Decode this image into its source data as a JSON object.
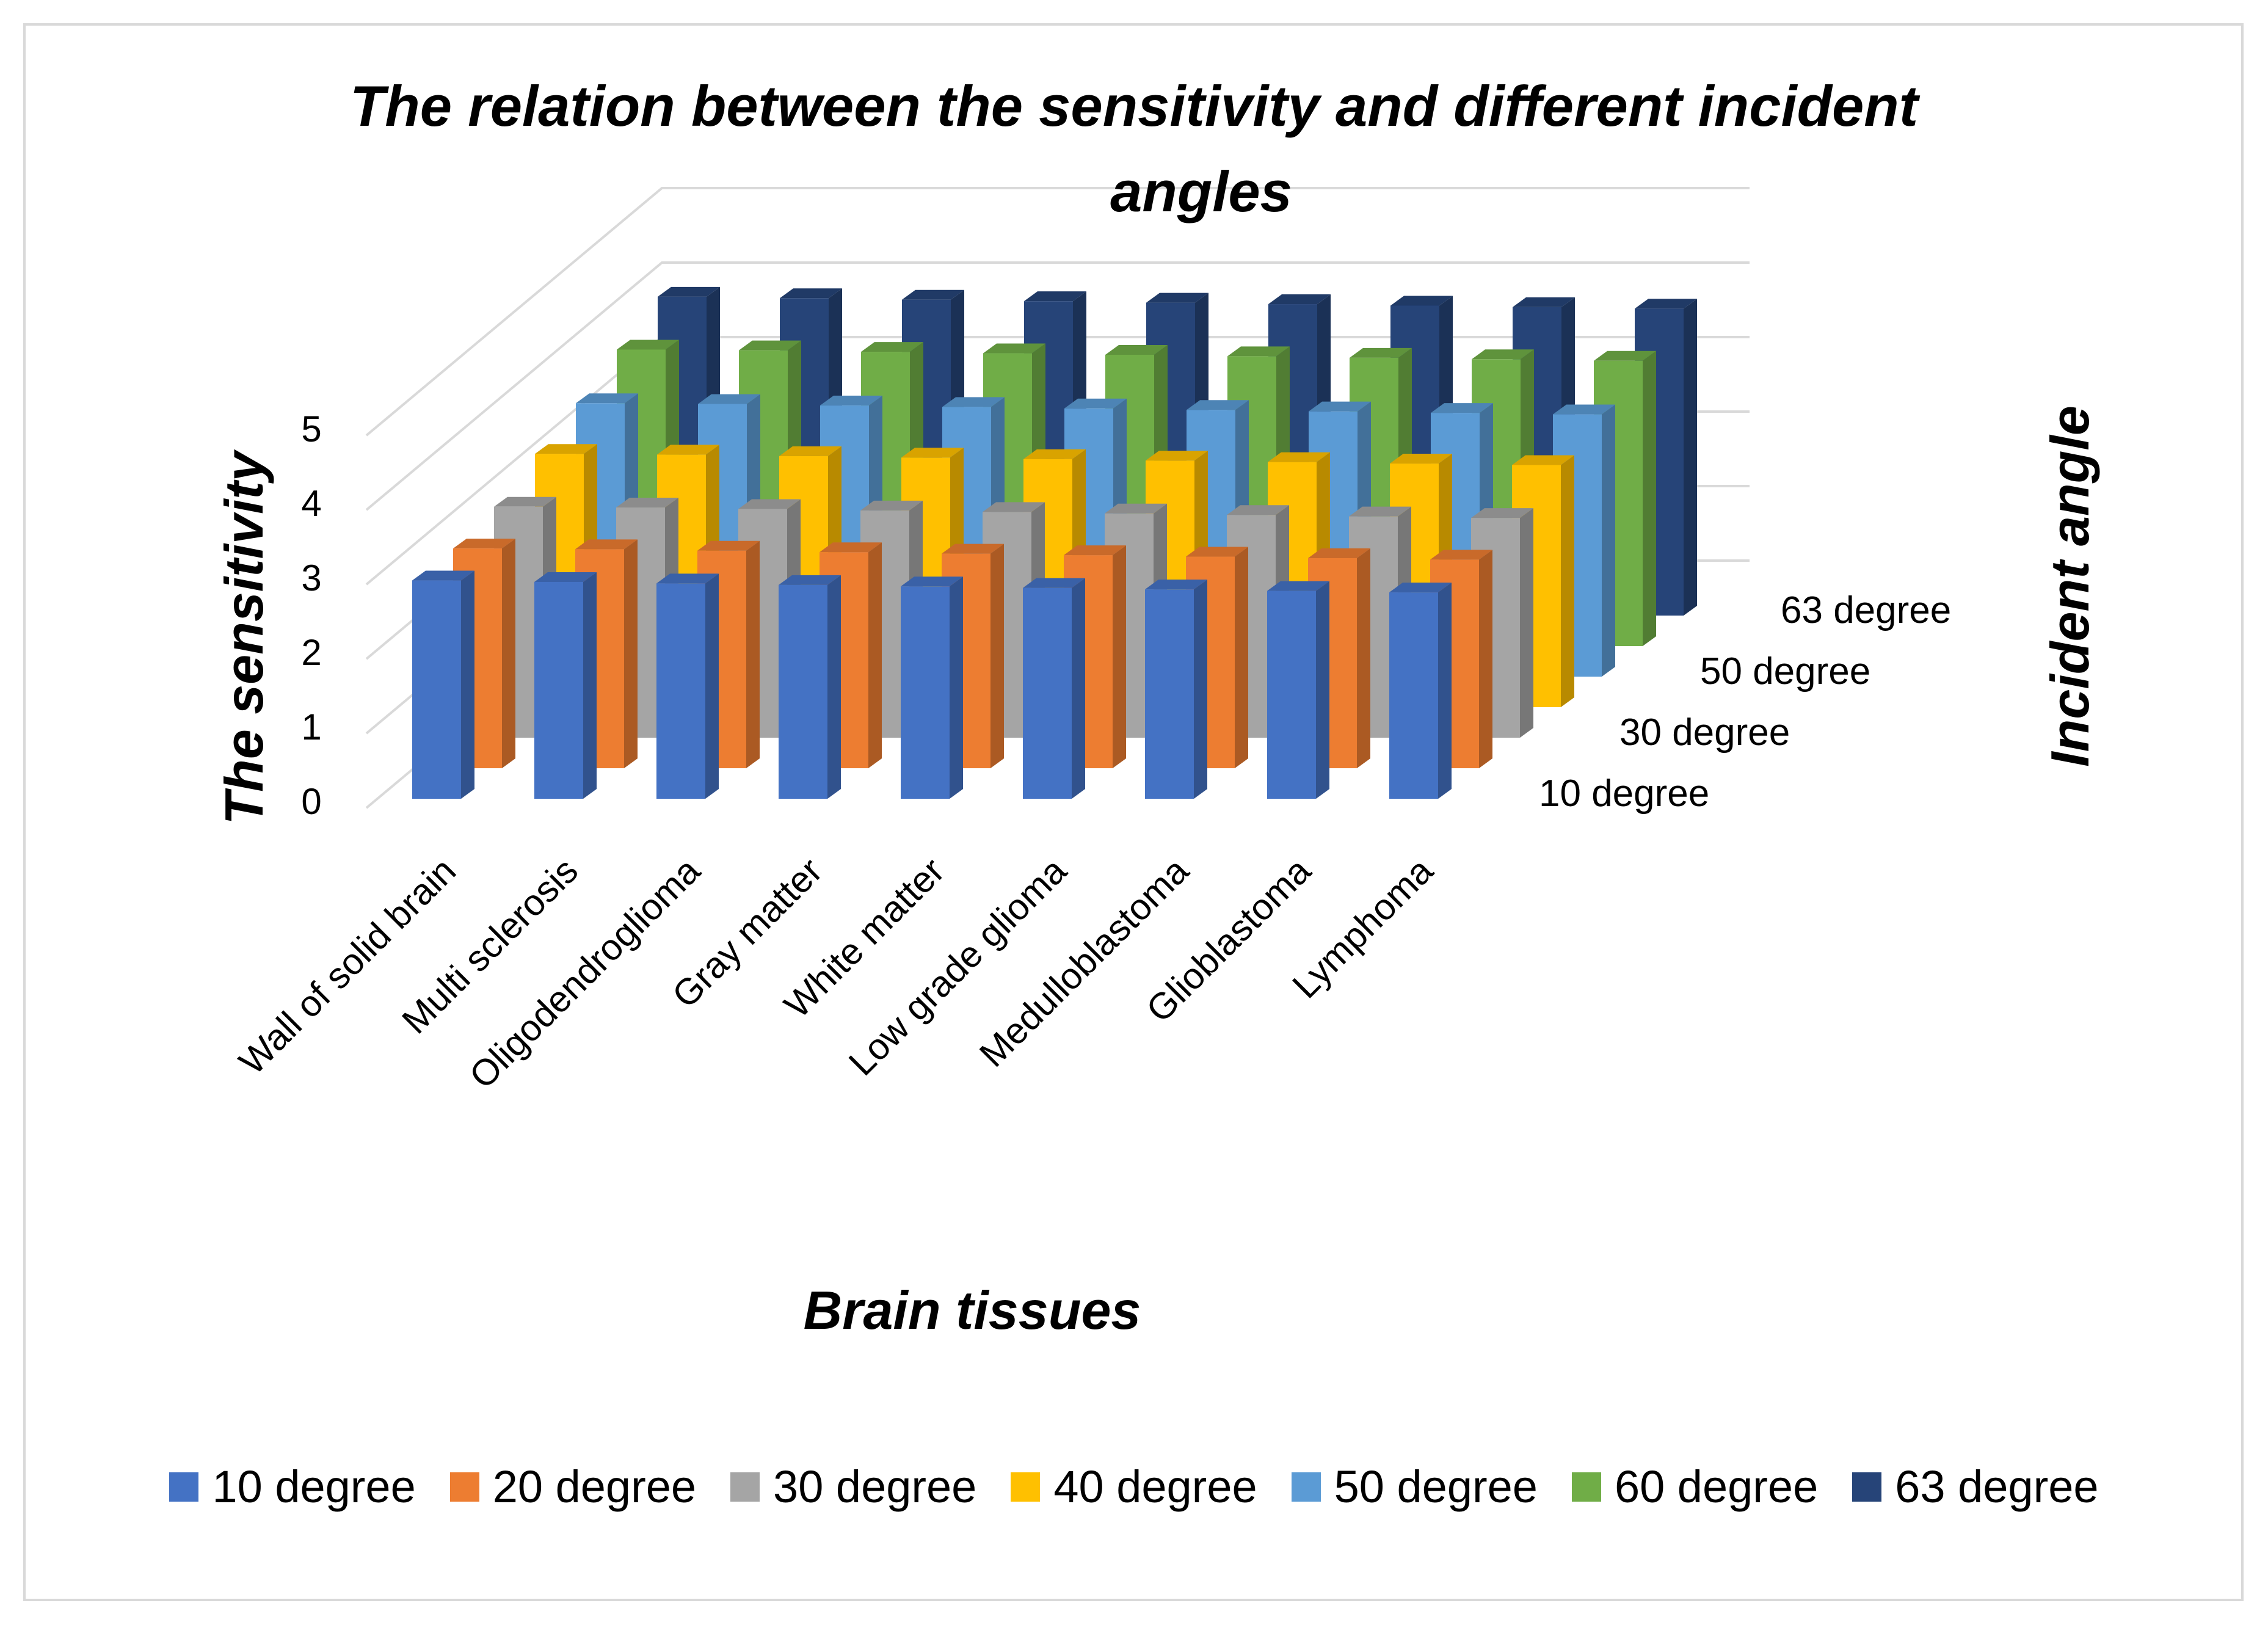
{
  "chart_data": {
    "type": "bar",
    "variant": "3d-bar",
    "title_lines": [
      "The relation between the sensitivity and different incident",
      "angles"
    ],
    "xlabel": "Brain tissues",
    "ylabel": "The sensitivity",
    "zlabel": "Incident angle",
    "ylim": [
      0,
      5
    ],
    "yticks": [
      "0",
      "1",
      "2",
      "3",
      "4",
      "5"
    ],
    "grid": true,
    "legend_position": "bottom",
    "categories": [
      "Wall of solid brain",
      "Multi sclerosis",
      "Oligodendroglioma",
      "Gray matter",
      "White matter",
      "Low grade glioma",
      "Medulloblastoma",
      "Glioblastoma",
      "Lymphoma"
    ],
    "depth_tick_labels": [
      "10 degree",
      "30 degree",
      "50 degree",
      "63 degree"
    ],
    "series": [
      {
        "name": "10 degree",
        "color": "#4472c4",
        "values": [
          2.93,
          2.91,
          2.89,
          2.87,
          2.85,
          2.83,
          2.81,
          2.79,
          2.77
        ]
      },
      {
        "name": "20 degree",
        "color": "#ed7d31",
        "values": [
          2.95,
          2.94,
          2.92,
          2.9,
          2.88,
          2.86,
          2.84,
          2.82,
          2.8
        ]
      },
      {
        "name": "30 degree",
        "color": "#a5a5a5",
        "values": [
          3.1,
          3.09,
          3.07,
          3.05,
          3.03,
          3.01,
          2.99,
          2.97,
          2.95
        ]
      },
      {
        "name": "40 degree",
        "color": "#ffc000",
        "values": [
          3.4,
          3.39,
          3.37,
          3.35,
          3.33,
          3.31,
          3.29,
          3.27,
          3.25
        ]
      },
      {
        "name": "50 degree",
        "color": "#5b9bd5",
        "values": [
          3.67,
          3.66,
          3.64,
          3.62,
          3.6,
          3.58,
          3.56,
          3.54,
          3.52
        ]
      },
      {
        "name": "60 degree",
        "color": "#70ad47",
        "values": [
          3.98,
          3.97,
          3.95,
          3.93,
          3.91,
          3.89,
          3.87,
          3.85,
          3.83
        ]
      },
      {
        "name": "63 degree",
        "color": "#264478",
        "values": [
          4.28,
          4.26,
          4.24,
          4.22,
          4.2,
          4.18,
          4.16,
          4.14,
          4.12
        ]
      }
    ]
  }
}
